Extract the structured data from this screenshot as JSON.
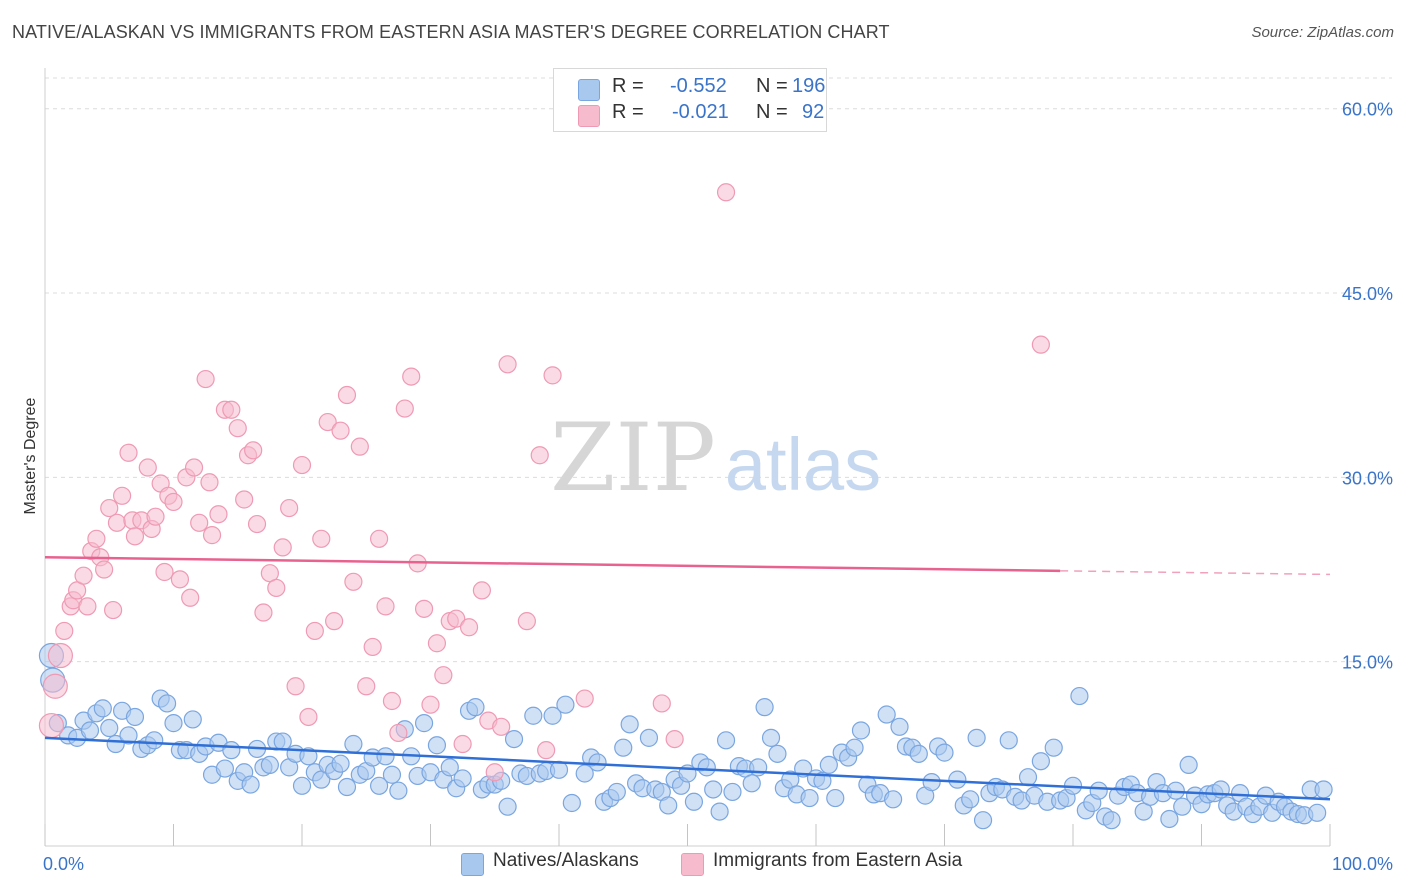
{
  "title": "NATIVE/ALASKAN VS IMMIGRANTS FROM EASTERN ASIA MASTER'S DEGREE CORRELATION CHART",
  "source": "Source: ZipAtlas.com",
  "watermark": {
    "zip": "ZIP",
    "atlas": "atlas"
  },
  "colors": {
    "blue_fill": "#a9c8ee",
    "blue_stroke": "#7aa6e0",
    "blue_line": "#2f6fd6",
    "pink_fill": "#f6bccd",
    "pink_stroke": "#ef9ab4",
    "pink_line": "#e8628f",
    "axis_text": "#3a74c9",
    "grid": "#dcdcdc"
  },
  "legend": {
    "r_label": "R =",
    "n_label": "N =",
    "rows": [
      {
        "series": "Natives/Alaskans",
        "r": "-0.552",
        "n": "196"
      },
      {
        "series": "Immigrants from Eastern Asia",
        "r": "-0.021",
        "n": "92"
      }
    ]
  },
  "chart_data": {
    "type": "scatter",
    "title": "NATIVE/ALASKAN VS IMMIGRANTS FROM EASTERN ASIA MASTER'S DEGREE CORRELATION CHART",
    "xlabel": "",
    "ylabel": "Master's Degree",
    "xlim": [
      0,
      100
    ],
    "ylim": [
      0,
      62.5
    ],
    "x_tick_labels": [
      "0.0%",
      "100.0%"
    ],
    "y_ticks": [
      15,
      30,
      45,
      60
    ],
    "y_tick_labels": [
      "15.0%",
      "30.0%",
      "45.0%",
      "60.0%"
    ],
    "series": [
      {
        "name": "Natives/Alaskans",
        "r": -0.552,
        "n": 196,
        "trend": {
          "x0": 0,
          "y0": 8.8,
          "x1": 100,
          "y1": 3.8
        },
        "points": [
          [
            0.5,
            15.5
          ],
          [
            0.6,
            13.5
          ],
          [
            1,
            10
          ],
          [
            1.8,
            9
          ],
          [
            2.5,
            8.8
          ],
          [
            3,
            10.2
          ],
          [
            3.5,
            9.4
          ],
          [
            4,
            10.8
          ],
          [
            4.5,
            11.2
          ],
          [
            5,
            9.6
          ],
          [
            5.5,
            8.3
          ],
          [
            6,
            11
          ],
          [
            6.5,
            9
          ],
          [
            7,
            10.5
          ],
          [
            7.5,
            7.9
          ],
          [
            8,
            8.2
          ],
          [
            8.5,
            8.6
          ],
          [
            9,
            12
          ],
          [
            9.5,
            11.6
          ],
          [
            10,
            10
          ],
          [
            10.5,
            7.8
          ],
          [
            11,
            7.8
          ],
          [
            11.5,
            10.3
          ],
          [
            12,
            7.5
          ],
          [
            12.5,
            8.1
          ],
          [
            13,
            5.8
          ],
          [
            13.5,
            8.4
          ],
          [
            14,
            6.3
          ],
          [
            14.5,
            7.8
          ],
          [
            15,
            5.3
          ],
          [
            15.5,
            6
          ],
          [
            16,
            5
          ],
          [
            16.5,
            7.9
          ],
          [
            17,
            6.4
          ],
          [
            17.5,
            6.6
          ],
          [
            18,
            8.5
          ],
          [
            18.5,
            8.5
          ],
          [
            19,
            6.4
          ],
          [
            19.5,
            7.5
          ],
          [
            20,
            4.9
          ],
          [
            20.5,
            7.3
          ],
          [
            21,
            6
          ],
          [
            21.5,
            5.4
          ],
          [
            22,
            6.6
          ],
          [
            22.5,
            6.1
          ],
          [
            23,
            6.7
          ],
          [
            23.5,
            4.8
          ],
          [
            24,
            8.3
          ],
          [
            24.5,
            5.8
          ],
          [
            25,
            6.1
          ],
          [
            25.5,
            7.2
          ],
          [
            26,
            4.9
          ],
          [
            26.5,
            7.3
          ],
          [
            27,
            5.8
          ],
          [
            27.5,
            4.5
          ],
          [
            28,
            9.5
          ],
          [
            28.5,
            7.3
          ],
          [
            29,
            5.7
          ],
          [
            29.5,
            10
          ],
          [
            30,
            6
          ],
          [
            30.5,
            8.2
          ],
          [
            31,
            5.4
          ],
          [
            31.5,
            6.4
          ],
          [
            32,
            4.7
          ],
          [
            32.5,
            5.5
          ],
          [
            33,
            11
          ],
          [
            33.5,
            11.3
          ],
          [
            34,
            4.6
          ],
          [
            34.5,
            5
          ],
          [
            35,
            5
          ],
          [
            35.5,
            5.3
          ],
          [
            36,
            3.2
          ],
          [
            36.5,
            8.7
          ],
          [
            37,
            5.9
          ],
          [
            37.5,
            5.7
          ],
          [
            38,
            10.6
          ],
          [
            38.5,
            5.9
          ],
          [
            39,
            6.1
          ],
          [
            39.5,
            10.6
          ],
          [
            40,
            6.2
          ],
          [
            40.5,
            11.5
          ],
          [
            41,
            3.5
          ],
          [
            42,
            5.9
          ],
          [
            42.5,
            7.2
          ],
          [
            43,
            6.8
          ],
          [
            43.5,
            3.6
          ],
          [
            44,
            3.9
          ],
          [
            44.5,
            4.4
          ],
          [
            45,
            8
          ],
          [
            45.5,
            9.9
          ],
          [
            46,
            5.1
          ],
          [
            46.5,
            4.7
          ],
          [
            47,
            8.8
          ],
          [
            47.5,
            4.6
          ],
          [
            48,
            4.4
          ],
          [
            48.5,
            3.3
          ],
          [
            49,
            5.4
          ],
          [
            49.5,
            4.9
          ],
          [
            50,
            5.9
          ],
          [
            50.5,
            3.6
          ],
          [
            51,
            6.8
          ],
          [
            51.5,
            6.4
          ],
          [
            52,
            4.6
          ],
          [
            52.5,
            2.8
          ],
          [
            53,
            8.6
          ],
          [
            53.5,
            4.4
          ],
          [
            54,
            6.5
          ],
          [
            54.5,
            6.3
          ],
          [
            55,
            5.1
          ],
          [
            55.5,
            6.4
          ],
          [
            56,
            11.3
          ],
          [
            56.5,
            8.8
          ],
          [
            57,
            7.5
          ],
          [
            57.5,
            4.7
          ],
          [
            58,
            5.4
          ],
          [
            58.5,
            4.2
          ],
          [
            59,
            6.3
          ],
          [
            59.5,
            3.9
          ],
          [
            60,
            5.5
          ],
          [
            60.5,
            5.3
          ],
          [
            61,
            6.6
          ],
          [
            61.5,
            3.9
          ],
          [
            62,
            7.6
          ],
          [
            62.5,
            7.2
          ],
          [
            63,
            8
          ],
          [
            63.5,
            9.4
          ],
          [
            64,
            5
          ],
          [
            64.5,
            4.2
          ],
          [
            65,
            4.3
          ],
          [
            65.5,
            10.7
          ],
          [
            66,
            3.8
          ],
          [
            66.5,
            9.7
          ],
          [
            67,
            8.1
          ],
          [
            67.5,
            8
          ],
          [
            68,
            7.5
          ],
          [
            68.5,
            4.1
          ],
          [
            69,
            5.2
          ],
          [
            69.5,
            8.1
          ],
          [
            70,
            7.6
          ],
          [
            71,
            5.4
          ],
          [
            71.5,
            3.3
          ],
          [
            72,
            3.8
          ],
          [
            72.5,
            8.8
          ],
          [
            73,
            2.1
          ],
          [
            73.5,
            4.3
          ],
          [
            74,
            4.8
          ],
          [
            74.5,
            4.6
          ],
          [
            75,
            8.6
          ],
          [
            75.5,
            4
          ],
          [
            76,
            3.7
          ],
          [
            76.5,
            5.6
          ],
          [
            77,
            4.1
          ],
          [
            77.5,
            6.9
          ],
          [
            78,
            3.6
          ],
          [
            78.5,
            8
          ],
          [
            79,
            3.7
          ],
          [
            79.5,
            3.9
          ],
          [
            80,
            4.9
          ],
          [
            80.5,
            12.2
          ],
          [
            81,
            2.9
          ],
          [
            81.5,
            3.5
          ],
          [
            82,
            4.5
          ],
          [
            82.5,
            2.4
          ],
          [
            83,
            2.1
          ],
          [
            83.5,
            4.1
          ],
          [
            84,
            4.8
          ],
          [
            84.5,
            5
          ],
          [
            85,
            4.3
          ],
          [
            85.5,
            2.8
          ],
          [
            86,
            4
          ],
          [
            86.5,
            5.2
          ],
          [
            87,
            4.3
          ],
          [
            87.5,
            2.2
          ],
          [
            88,
            4.5
          ],
          [
            88.5,
            3.2
          ],
          [
            89,
            6.6
          ],
          [
            89.5,
            4.1
          ],
          [
            90,
            3.4
          ],
          [
            90.5,
            4.2
          ],
          [
            91,
            4.3
          ],
          [
            91.5,
            4.6
          ],
          [
            92,
            3.3
          ],
          [
            92.5,
            2.8
          ],
          [
            93,
            4.3
          ],
          [
            93.5,
            3.2
          ],
          [
            94,
            2.6
          ],
          [
            94.5,
            3.2
          ],
          [
            95,
            4.1
          ],
          [
            95.5,
            2.7
          ],
          [
            96,
            3.6
          ],
          [
            96.5,
            3.2
          ],
          [
            97,
            2.8
          ],
          [
            97.5,
            2.6
          ],
          [
            98,
            2.5
          ],
          [
            98.5,
            4.6
          ],
          [
            99,
            2.7
          ],
          [
            99.5,
            4.6
          ]
        ]
      },
      {
        "name": "Immigrants from Eastern Asia",
        "r": -0.021,
        "n": 92,
        "trend": {
          "x0": 0,
          "y0": 23.5,
          "x1": 100,
          "y1": 22.1,
          "solid_until": 79
        },
        "points": [
          [
            0.5,
            9.8
          ],
          [
            0.8,
            13
          ],
          [
            1.2,
            15.5
          ],
          [
            1.5,
            17.5
          ],
          [
            2,
            19.5
          ],
          [
            2.2,
            20
          ],
          [
            2.5,
            20.8
          ],
          [
            3,
            22
          ],
          [
            3.3,
            19.5
          ],
          [
            3.6,
            24
          ],
          [
            4,
            25
          ],
          [
            4.3,
            23.5
          ],
          [
            4.6,
            22.5
          ],
          [
            5,
            27.5
          ],
          [
            5.3,
            19.2
          ],
          [
            5.6,
            26.3
          ],
          [
            6,
            28.5
          ],
          [
            6.5,
            32
          ],
          [
            6.8,
            26.5
          ],
          [
            7,
            25.2
          ],
          [
            7.5,
            26.5
          ],
          [
            8,
            30.8
          ],
          [
            8.3,
            25.8
          ],
          [
            8.6,
            26.8
          ],
          [
            9,
            29.5
          ],
          [
            9.3,
            22.3
          ],
          [
            9.6,
            28.5
          ],
          [
            10,
            28
          ],
          [
            10.5,
            21.7
          ],
          [
            11,
            30
          ],
          [
            11.3,
            20.2
          ],
          [
            11.6,
            30.8
          ],
          [
            12,
            26.3
          ],
          [
            12.5,
            38
          ],
          [
            12.8,
            29.6
          ],
          [
            13,
            25.3
          ],
          [
            13.5,
            27
          ],
          [
            14,
            35.5
          ],
          [
            14.5,
            35.5
          ],
          [
            15,
            34
          ],
          [
            15.5,
            28.2
          ],
          [
            15.8,
            31.8
          ],
          [
            16.2,
            32.2
          ],
          [
            16.5,
            26.2
          ],
          [
            17,
            19
          ],
          [
            17.5,
            22.2
          ],
          [
            18,
            21
          ],
          [
            18.5,
            24.3
          ],
          [
            19,
            27.5
          ],
          [
            19.5,
            13
          ],
          [
            20,
            31
          ],
          [
            20.5,
            10.5
          ],
          [
            21,
            17.5
          ],
          [
            21.5,
            25
          ],
          [
            22,
            34.5
          ],
          [
            22.5,
            18.3
          ],
          [
            23,
            33.8
          ],
          [
            23.5,
            36.7
          ],
          [
            24,
            21.5
          ],
          [
            24.5,
            32.5
          ],
          [
            25,
            13
          ],
          [
            25.5,
            16.2
          ],
          [
            26,
            25
          ],
          [
            26.5,
            19.5
          ],
          [
            27,
            11.8
          ],
          [
            27.5,
            9.2
          ],
          [
            28,
            35.6
          ],
          [
            28.5,
            38.2
          ],
          [
            29,
            23
          ],
          [
            29.5,
            19.3
          ],
          [
            30,
            11.5
          ],
          [
            30.5,
            16.5
          ],
          [
            31,
            13.9
          ],
          [
            31.5,
            18.3
          ],
          [
            32,
            18.5
          ],
          [
            32.5,
            8.3
          ],
          [
            33,
            17.8
          ],
          [
            34,
            20.8
          ],
          [
            34.5,
            10.2
          ],
          [
            35,
            6
          ],
          [
            35.5,
            9.7
          ],
          [
            36,
            39.2
          ],
          [
            37.5,
            18.3
          ],
          [
            38.5,
            31.8
          ],
          [
            39,
            7.8
          ],
          [
            39.5,
            38.3
          ],
          [
            42,
            12
          ],
          [
            48,
            11.6
          ],
          [
            49,
            8.7
          ],
          [
            53,
            53.2
          ],
          [
            77.5,
            40.8
          ]
        ]
      }
    ]
  }
}
